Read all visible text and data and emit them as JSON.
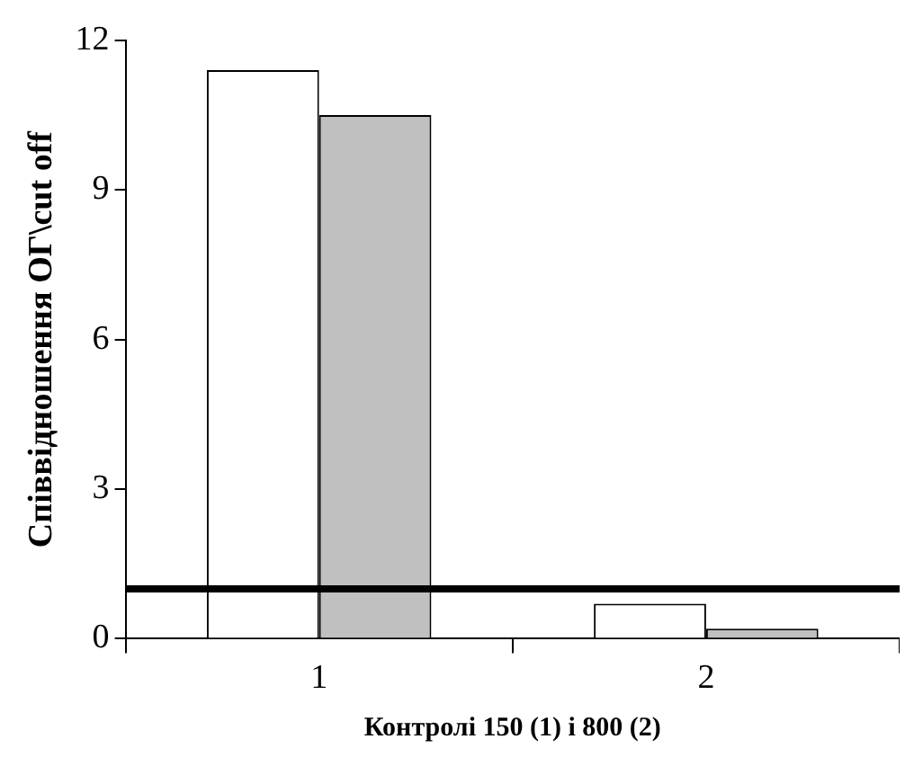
{
  "chart_data": {
    "type": "bar",
    "xlabel": "Контролі 150 (1) і 800 (2)",
    "ylabel": "Співвідношення ОГ\\cut off",
    "categories": [
      "1",
      "2"
    ],
    "series": [
      {
        "color": "#ffffff",
        "values": [
          11.4,
          0.7
        ]
      },
      {
        "color": "#c0c0c0",
        "values": [
          10.5,
          0.2
        ]
      }
    ],
    "ylim": [
      0,
      12
    ],
    "yticks": [
      0,
      3,
      6,
      9,
      12
    ],
    "grid": false,
    "legend": false,
    "ref_lines": [
      {
        "axis": "y",
        "value": 1,
        "color": "#000000"
      }
    ]
  }
}
